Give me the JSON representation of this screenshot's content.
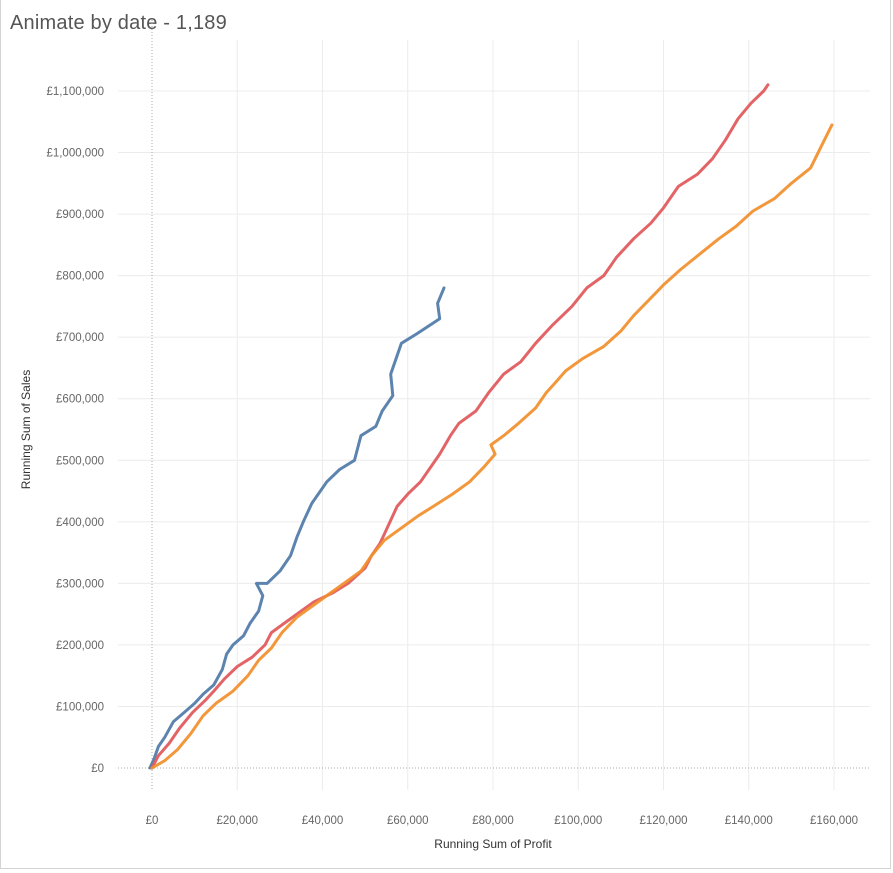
{
  "chart_data": {
    "type": "line",
    "title": "Animate by date - 1,189",
    "xlabel": "Running Sum of Profit",
    "ylabel": "Running Sum of Sales",
    "xlim": [
      -4000,
      164000
    ],
    "ylim": [
      -20000,
      1150000
    ],
    "x_ticks": [
      0,
      20000,
      40000,
      60000,
      80000,
      100000,
      120000,
      140000,
      160000
    ],
    "x_tick_labels": [
      "£0",
      "£20,000",
      "£40,000",
      "£60,000",
      "£80,000",
      "£100,000",
      "£120,000",
      "£140,000",
      "£160,000"
    ],
    "y_ticks": [
      0,
      100000,
      200000,
      300000,
      400000,
      500000,
      600000,
      700000,
      800000,
      900000,
      1000000,
      1100000
    ],
    "y_tick_labels": [
      "£0",
      "£100,000",
      "£200,000",
      "£300,000",
      "£400,000",
      "£500,000",
      "£600,000",
      "£700,000",
      "£800,000",
      "£900,000",
      "£1,000,000",
      "£1,100,000"
    ],
    "grid": true,
    "series": [
      {
        "color": "#4e79a7",
        "points": [
          [
            -500,
            0
          ],
          [
            500,
            15000
          ],
          [
            1500,
            35000
          ],
          [
            3000,
            50000
          ],
          [
            5000,
            75000
          ],
          [
            7500,
            90000
          ],
          [
            10000,
            105000
          ],
          [
            12000,
            120000
          ],
          [
            14500,
            135000
          ],
          [
            16500,
            160000
          ],
          [
            17500,
            185000
          ],
          [
            19000,
            200000
          ],
          [
            21500,
            215000
          ],
          [
            23000,
            235000
          ],
          [
            25000,
            255000
          ],
          [
            26000,
            280000
          ],
          [
            24500,
            300000
          ],
          [
            27000,
            300000
          ],
          [
            30000,
            320000
          ],
          [
            32500,
            345000
          ],
          [
            34000,
            375000
          ],
          [
            35500,
            400000
          ],
          [
            37500,
            430000
          ],
          [
            41000,
            465000
          ],
          [
            44000,
            485000
          ],
          [
            47500,
            500000
          ],
          [
            49000,
            540000
          ],
          [
            52500,
            555000
          ],
          [
            54000,
            580000
          ],
          [
            56500,
            605000
          ],
          [
            56000,
            640000
          ],
          [
            58500,
            690000
          ],
          [
            62000,
            705000
          ],
          [
            67500,
            730000
          ],
          [
            67000,
            755000
          ],
          [
            68500,
            780000
          ]
        ]
      },
      {
        "color": "#e15759",
        "points": [
          [
            0,
            0
          ],
          [
            1500,
            20000
          ],
          [
            4000,
            40000
          ],
          [
            6500,
            65000
          ],
          [
            9500,
            90000
          ],
          [
            12500,
            110000
          ],
          [
            14500,
            125000
          ],
          [
            17000,
            145000
          ],
          [
            20000,
            165000
          ],
          [
            23500,
            180000
          ],
          [
            26500,
            200000
          ],
          [
            28000,
            220000
          ],
          [
            31000,
            235000
          ],
          [
            34000,
            250000
          ],
          [
            38000,
            270000
          ],
          [
            42500,
            285000
          ],
          [
            46000,
            300000
          ],
          [
            50000,
            325000
          ],
          [
            51500,
            345000
          ],
          [
            53500,
            365000
          ],
          [
            55500,
            395000
          ],
          [
            57500,
            425000
          ],
          [
            60000,
            445000
          ],
          [
            63000,
            465000
          ],
          [
            65500,
            490000
          ],
          [
            67500,
            510000
          ],
          [
            70000,
            540000
          ],
          [
            72000,
            560000
          ],
          [
            76000,
            580000
          ],
          [
            79000,
            610000
          ],
          [
            82500,
            640000
          ],
          [
            86500,
            660000
          ],
          [
            90000,
            690000
          ],
          [
            94000,
            720000
          ],
          [
            98500,
            750000
          ],
          [
            102000,
            780000
          ],
          [
            106000,
            800000
          ],
          [
            109000,
            830000
          ],
          [
            113000,
            860000
          ],
          [
            117000,
            885000
          ],
          [
            120000,
            910000
          ],
          [
            123500,
            945000
          ],
          [
            128000,
            965000
          ],
          [
            131500,
            990000
          ],
          [
            134500,
            1020000
          ],
          [
            137500,
            1055000
          ],
          [
            140500,
            1080000
          ],
          [
            143500,
            1100000
          ],
          [
            144500,
            1110000
          ]
        ]
      },
      {
        "color": "#f28e2b",
        "points": [
          [
            0,
            0
          ],
          [
            3000,
            12000
          ],
          [
            6000,
            30000
          ],
          [
            9000,
            55000
          ],
          [
            12000,
            85000
          ],
          [
            15000,
            105000
          ],
          [
            19000,
            125000
          ],
          [
            22500,
            150000
          ],
          [
            25000,
            175000
          ],
          [
            28000,
            195000
          ],
          [
            30500,
            220000
          ],
          [
            34000,
            245000
          ],
          [
            38000,
            265000
          ],
          [
            42000,
            285000
          ],
          [
            46000,
            305000
          ],
          [
            49000,
            320000
          ],
          [
            51500,
            345000
          ],
          [
            54500,
            370000
          ],
          [
            58500,
            390000
          ],
          [
            62500,
            410000
          ],
          [
            66000,
            425000
          ],
          [
            70500,
            445000
          ],
          [
            74500,
            465000
          ],
          [
            78000,
            490000
          ],
          [
            80500,
            510000
          ],
          [
            79500,
            525000
          ],
          [
            82500,
            540000
          ],
          [
            86000,
            560000
          ],
          [
            90000,
            585000
          ],
          [
            92500,
            610000
          ],
          [
            94500,
            625000
          ],
          [
            97000,
            645000
          ],
          [
            101000,
            665000
          ],
          [
            106000,
            685000
          ],
          [
            110000,
            710000
          ],
          [
            113000,
            735000
          ],
          [
            116500,
            760000
          ],
          [
            120000,
            785000
          ],
          [
            124000,
            810000
          ],
          [
            128500,
            835000
          ],
          [
            133000,
            860000
          ],
          [
            137000,
            880000
          ],
          [
            141000,
            905000
          ],
          [
            146000,
            925000
          ],
          [
            150000,
            950000
          ],
          [
            154500,
            975000
          ],
          [
            157000,
            1010000
          ],
          [
            159500,
            1045000
          ]
        ]
      }
    ]
  }
}
